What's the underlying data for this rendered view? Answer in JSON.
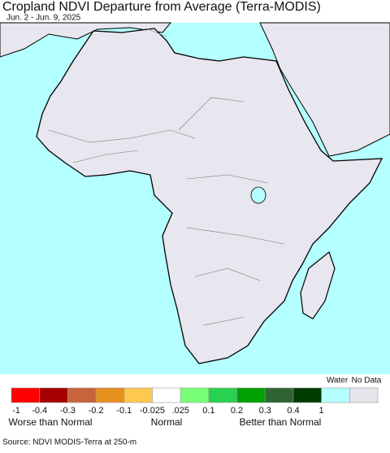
{
  "header": {
    "title": "Cropland NDVI Departure from Average (Terra-MODIS)",
    "subtitle": "Jun. 2 - Jun. 9, 2025"
  },
  "legend": {
    "colors": [
      "#ff0000",
      "#a50000",
      "#c8643c",
      "#e8901e",
      "#ffc850",
      "#ffffff",
      "#78ff78",
      "#28d250",
      "#00a000",
      "#2d6432",
      "#003c00",
      "#b4ffff",
      "#e6e4ea"
    ],
    "ticks": [
      "-1",
      "-0.4",
      "-0.3",
      "-0.2",
      "-0.1",
      "-0.025",
      ".025",
      "0.1",
      "0.2",
      "0.3",
      "0.4",
      "1"
    ],
    "worse": "Worse than Normal",
    "normal": "Normal",
    "better": "Better than Normal",
    "water": "Water",
    "no_data": "No Data"
  },
  "source": "Source: NDVI MODIS-Terra at 250-m"
}
